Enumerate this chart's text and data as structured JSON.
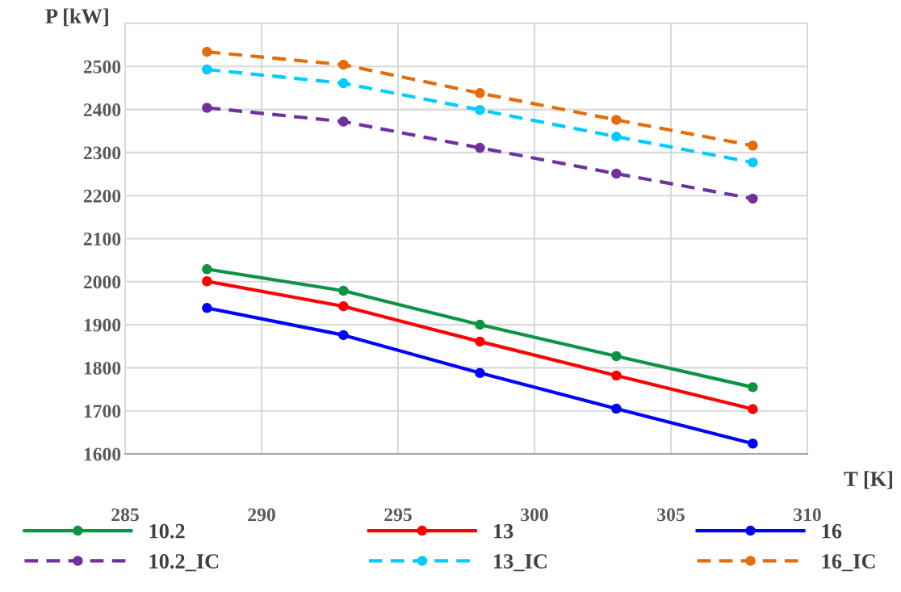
{
  "chart_data": {
    "type": "line",
    "xlabel": "T [K]",
    "ylabel": "P [kW]",
    "x": [
      288,
      293,
      298,
      303,
      308
    ],
    "series": [
      {
        "name": "10.2",
        "color": "#0b9444",
        "values": [
          2029,
          1979,
          1900,
          1827,
          1755
        ],
        "line_style": "solid"
      },
      {
        "name": "13",
        "color": "#ff0000",
        "values": [
          2001,
          1943,
          1861,
          1782,
          1704
        ],
        "line_style": "solid"
      },
      {
        "name": "16",
        "color": "#0000ff",
        "values": [
          1939,
          1876,
          1788,
          1705,
          1624
        ],
        "line_style": "solid"
      },
      {
        "name": "10.2_IC",
        "color": "#7030a0",
        "values": [
          2404,
          2372,
          2311,
          2251,
          2193
        ],
        "line_style": "dashed"
      },
      {
        "name": "13_IC",
        "color": "#00ccff",
        "values": [
          2493,
          2461,
          2399,
          2337,
          2277
        ],
        "line_style": "dashed"
      },
      {
        "name": "16_IC",
        "color": "#e46c0a",
        "values": [
          2534,
          2504,
          2438,
          2376,
          2316
        ],
        "line_style": "dashed"
      }
    ],
    "xlim": [
      285,
      310
    ],
    "xticks": [
      285,
      290,
      295,
      300,
      305,
      310
    ],
    "ylim": [
      1600,
      2600
    ],
    "yticks": [
      1600,
      1700,
      1800,
      1900,
      2000,
      2100,
      2200,
      2300,
      2400,
      2500
    ],
    "grid": true,
    "legend": "bottom",
    "marker": "circle"
  }
}
